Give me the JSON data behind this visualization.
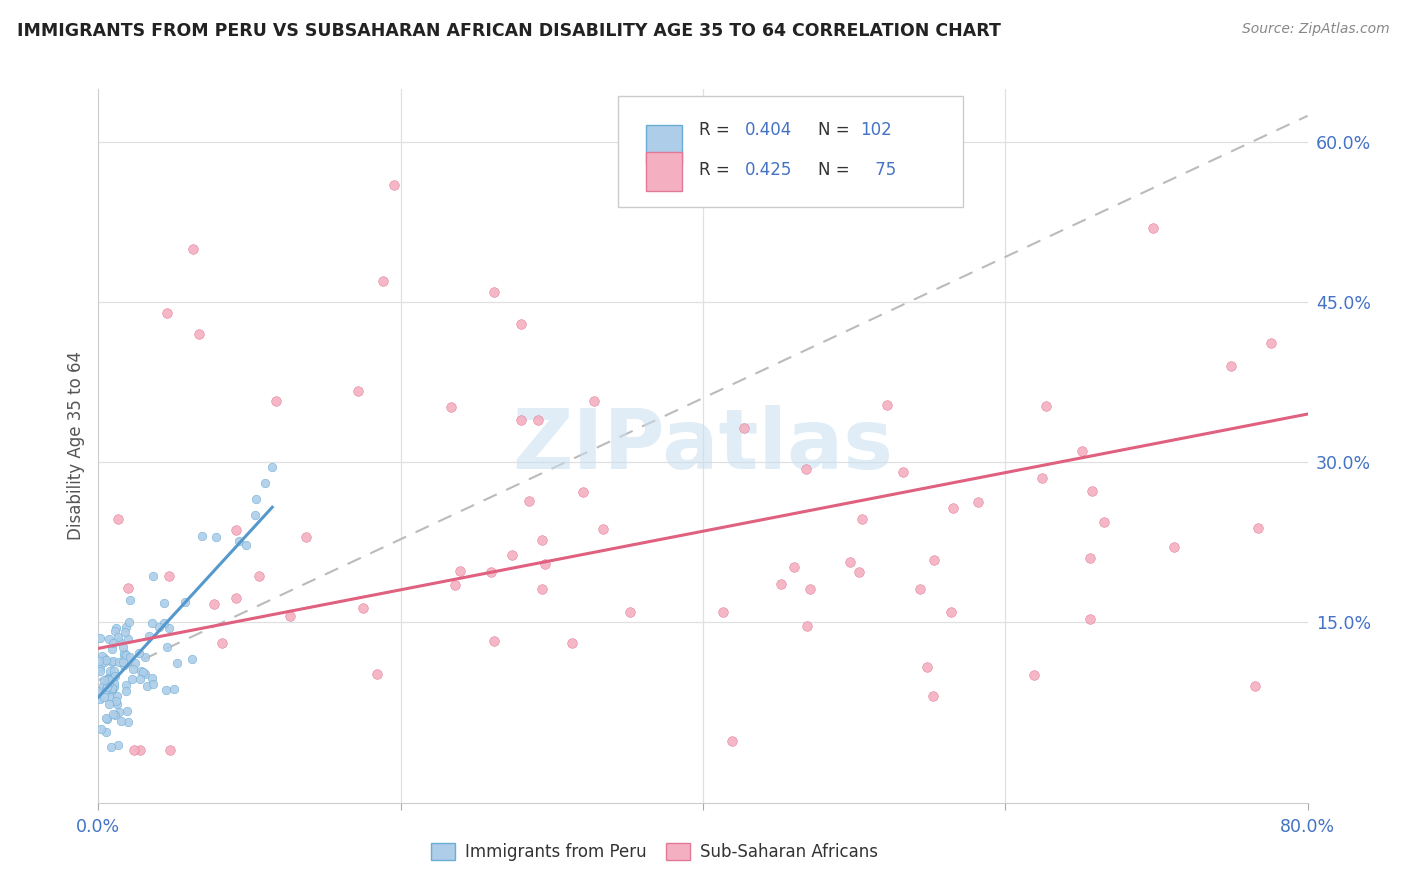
{
  "title": "IMMIGRANTS FROM PERU VS SUBSAHARAN AFRICAN DISABILITY AGE 35 TO 64 CORRELATION CHART",
  "source": "Source: ZipAtlas.com",
  "ylabel": "Disability Age 35 to 64",
  "xlim": [
    0.0,
    0.8
  ],
  "ylim": [
    -0.02,
    0.65
  ],
  "yticks_right": [
    0.15,
    0.3,
    0.45,
    0.6
  ],
  "ytick_labels_right": [
    "15.0%",
    "30.0%",
    "45.0%",
    "60.0%"
  ],
  "color_peru": "#aecde8",
  "color_africa": "#f4b0c0",
  "color_peru_edge": "#6aaed6",
  "color_africa_edge": "#e07898",
  "color_trendline_peru": "#5599cc",
  "color_trendline_africa": "#e06080",
  "color_trendline_grey": "#bbbbbb",
  "background": "#ffffff",
  "grid_color": "#e0e0e0",
  "watermark_color": "#c8dff0",
  "legend_text_color": "#4472c4",
  "legend_label_color": "#555555",
  "title_color": "#222222",
  "source_color": "#888888",
  "axis_label_color": "#555555",
  "tick_label_color": "#4472c4",
  "peru_R": "0.404",
  "peru_N": "102",
  "africa_R": "0.425",
  "africa_N": "75",
  "legend_entry1": "Immigrants from Peru",
  "legend_entry2": "Sub-Saharan Africans"
}
